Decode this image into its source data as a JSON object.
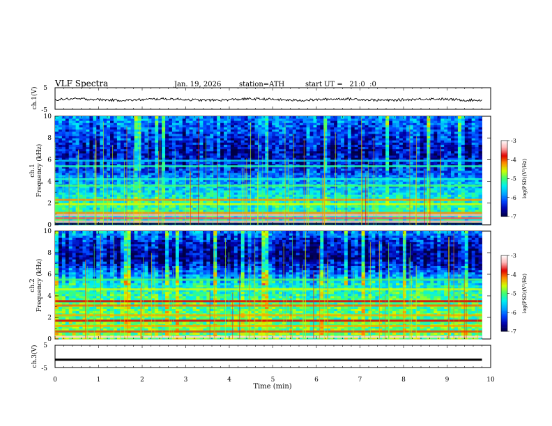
{
  "header": {
    "title": "VLF Spectra",
    "date": "Jan. 19, 2026",
    "station": "station=ATH",
    "start_ut": "start UT =   21:0  :0"
  },
  "chart_data": [
    {
      "type": "line",
      "panel": "ch1",
      "ylabel": "ch.1(V)",
      "ylim": [
        -5,
        5
      ],
      "yticks": [
        "5",
        "-5"
      ],
      "xlim": [
        0,
        10
      ],
      "trace": "noisy waveform around about -0.5 V, spanning roughly -1.5 to 0.5 V",
      "color": "#000000"
    },
    {
      "type": "heatmap",
      "panel": "ch1_spectrogram",
      "ylabel": "ch.1\nFrequency (kHz)",
      "ylim": [
        0,
        10
      ],
      "yticks": [
        "0",
        "2",
        "4",
        "6",
        "8",
        "10"
      ],
      "xlim": [
        0,
        10
      ],
      "data_end_min": 9.8,
      "colorbar": {
        "label": "log(PSD)(V²/Hz)",
        "range": [
          -7,
          -3
        ],
        "ticks": [
          "-3",
          "-4",
          "-5",
          "-6",
          "-7"
        ]
      },
      "bands_khz": [
        {
          "f": 0.1,
          "level": -7
        },
        {
          "f": 0.3,
          "level": -3.4
        },
        {
          "f": 0.6,
          "level": -3.6
        },
        {
          "f": 0.9,
          "level": -3.4
        },
        {
          "f": 1.1,
          "level": -4.2
        },
        {
          "f": 1.9,
          "level": -4.6
        },
        {
          "f": 2.3,
          "level": -4.2
        },
        {
          "f": 3.6,
          "level": -5.0
        },
        {
          "f": 4.2,
          "level": -5.3
        },
        {
          "f": 5.4,
          "level": -5.2
        },
        {
          "f": 5.9,
          "level": -5.6
        }
      ],
      "background": [
        {
          "f": 0,
          "level": -5.4
        },
        {
          "f": 2,
          "level": -5.2
        },
        {
          "f": 4,
          "level": -5.8
        },
        {
          "f": 5,
          "level": -6.2
        },
        {
          "f": 6.5,
          "level": -6.6
        },
        {
          "f": 8,
          "level": -6.3
        },
        {
          "f": 10,
          "level": -5.9
        }
      ]
    },
    {
      "type": "heatmap",
      "panel": "ch2_spectrogram",
      "ylabel": "ch.2\nFrequency (kHz)",
      "ylim": [
        0,
        10
      ],
      "yticks": [
        "0",
        "2",
        "4",
        "6",
        "8",
        "10"
      ],
      "xlim": [
        0,
        10
      ],
      "data_end_min": 9.8,
      "colorbar": {
        "label": "log(PSD)(V²/Hz)",
        "range": [
          -7,
          -3
        ],
        "ticks": [
          "-3",
          "-4",
          "-5",
          "-6",
          "-7"
        ]
      },
      "bands_khz": [
        {
          "f": 0.2,
          "level": -3.2
        },
        {
          "f": 0.7,
          "level": -4.0
        },
        {
          "f": 1.2,
          "level": -4.3
        },
        {
          "f": 1.7,
          "level": -3.8
        },
        {
          "f": 2.2,
          "level": -4.3
        },
        {
          "f": 3.1,
          "level": -4.1
        },
        {
          "f": 3.5,
          "level": -3.8
        },
        {
          "f": 4.6,
          "level": -4.6
        },
        {
          "f": 5.5,
          "level": -5.0
        }
      ],
      "background": [
        {
          "f": 0,
          "level": -4.9
        },
        {
          "f": 3,
          "level": -5.0
        },
        {
          "f": 5,
          "level": -5.3
        },
        {
          "f": 6,
          "level": -5.9
        },
        {
          "f": 7.5,
          "level": -6.7
        },
        {
          "f": 9,
          "level": -6.4
        },
        {
          "f": 10,
          "level": -5.8
        }
      ]
    },
    {
      "type": "line",
      "panel": "ch3",
      "ylabel": "ch.3(V)",
      "ylim": [
        -5,
        5
      ],
      "yticks": [
        "5",
        "-5"
      ],
      "xlim": [
        0,
        10
      ],
      "trace": "thick flat line at about -1.5 V",
      "color": "#000000"
    }
  ],
  "x_axis": {
    "label": "Time (min)",
    "ticks": [
      "0",
      "1",
      "2",
      "3",
      "4",
      "5",
      "6",
      "7",
      "8",
      "9",
      "10"
    ]
  },
  "colormap": [
    "#000044",
    "#0000aa",
    "#0044ff",
    "#00a8ff",
    "#00f0f0",
    "#40ff70",
    "#d0ff00",
    "#ff9000",
    "#e00000",
    "#ffb0b0",
    "#ffffff"
  ]
}
